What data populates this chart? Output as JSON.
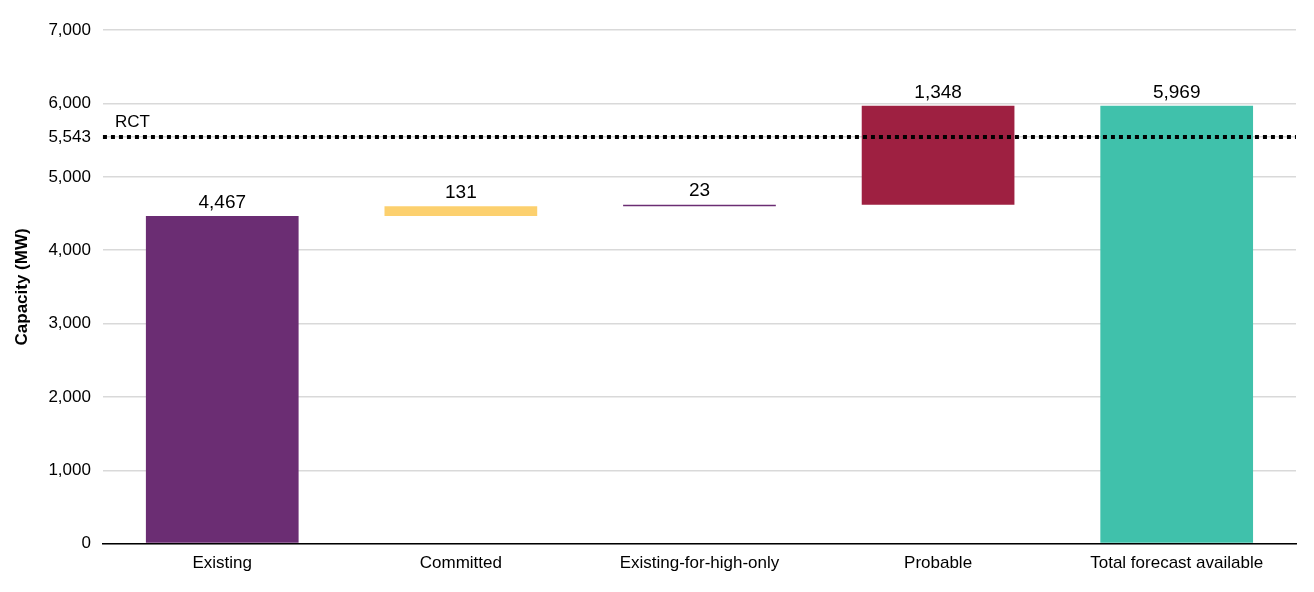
{
  "chart_data": {
    "type": "bar",
    "ylabel": "Capacity (MW)",
    "categories": [
      "Existing",
      "Committed",
      "Existing-for-high-only",
      "Probable",
      "Total forecast available"
    ],
    "values": [
      4467,
      131,
      23,
      1348,
      5969
    ],
    "base": [
      0,
      4467,
      4598,
      4621,
      0
    ],
    "colors": [
      "#6b2d73",
      "#fcd06e",
      "#6b2d73",
      "#9e2041",
      "#40c1ab"
    ],
    "value_labels": [
      "4,467",
      "131",
      "23",
      "1,348",
      "5,969"
    ],
    "ylim": [
      0,
      7000
    ],
    "yticks": [
      0,
      {
        "value": 1000,
        "label": "1,000"
      },
      {
        "value": 2000,
        "label": "2,000"
      },
      {
        "value": 3000,
        "label": "3,000"
      },
      {
        "value": 4000,
        "label": "4,000"
      },
      {
        "value": 5000,
        "label": "5,000"
      },
      {
        "value": 5543,
        "label": "5,543"
      },
      {
        "value": 6000,
        "label": "6,000"
      },
      {
        "value": 7000,
        "label": "7,000"
      }
    ],
    "ref_lines": [
      {
        "axis": "y",
        "value": 5543,
        "label": "RCT",
        "color": "#000000",
        "line_style": "dotted"
      }
    ],
    "grid": "y",
    "legend": false
  }
}
